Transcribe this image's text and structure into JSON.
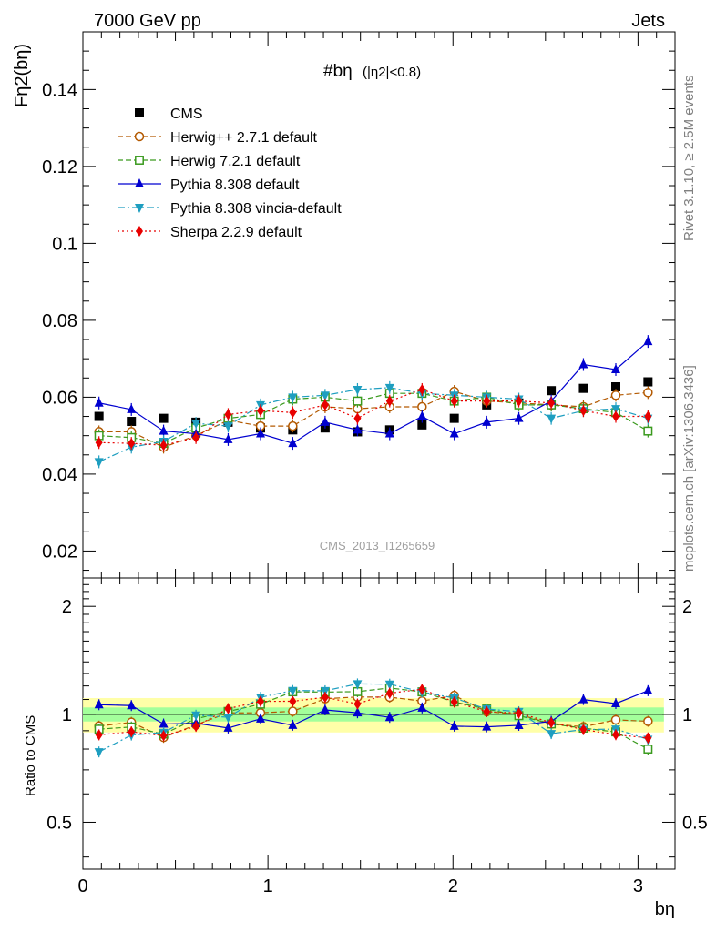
{
  "header": {
    "left": "7000 GeV pp",
    "right": "Jets"
  },
  "side_text": {
    "rivet": "Rivet 3.1.10, ≥ 2.5M events",
    "mcplots": "mcplots.cern.ch [arXiv:1306.3436]"
  },
  "watermark": "CMS_2013_I1265659",
  "plot_title": {
    "main": "#bη",
    "cut": "(|η2|<0.8)"
  },
  "axes": {
    "ylabel_main": "Fη2(bη)",
    "ylabel_ratio": "Ratio to CMS",
    "xlabel": "bη"
  },
  "chart_data": {
    "type": "scatter",
    "title": "#bη (|η2|<0.8)",
    "xlabel": "bη",
    "ylabel": "Fη2(bη)",
    "xlim": [
      0,
      3.2
    ],
    "ylim": [
      0.013,
      0.155
    ],
    "ratio_ylim": [
      0.37,
      2.4
    ],
    "ratio_ylabel": "Ratio to CMS",
    "legend_position": "top-left",
    "x": [
      0.087,
      0.262,
      0.436,
      0.611,
      0.785,
      0.96,
      1.134,
      1.309,
      1.484,
      1.658,
      1.833,
      2.007,
      2.182,
      2.356,
      2.531,
      2.705,
      2.88,
      3.054
    ],
    "main_ticks": [
      0.02,
      0.04,
      0.06,
      0.08,
      0.1,
      0.12,
      0.14
    ],
    "x_ticks": [
      0,
      1,
      2,
      3
    ],
    "ratio_ticks": [
      0.5,
      1,
      2
    ],
    "series": [
      {
        "name": "CMS",
        "color": "#000000",
        "marker": "square",
        "line": "none",
        "values": [
          0.055,
          0.0537,
          0.0545,
          0.0535,
          0.0535,
          0.052,
          0.0515,
          0.052,
          0.051,
          0.0515,
          0.0528,
          0.0545,
          0.058,
          0.0585,
          0.0617,
          0.0623,
          0.0627,
          0.064
        ]
      },
      {
        "name": "Herwig++ 2.7.1 default",
        "color": "#b35900",
        "marker": "circle-open",
        "line": "dashed",
        "values": [
          0.051,
          0.051,
          0.047,
          0.05,
          0.054,
          0.0525,
          0.0525,
          0.0575,
          0.057,
          0.0575,
          0.0575,
          0.0615,
          0.059,
          0.0585,
          0.058,
          0.0575,
          0.0605,
          0.0612
        ]
      },
      {
        "name": "Herwig 7.2.1 default",
        "color": "#3a9a1e",
        "marker": "square-open",
        "line": "dashed",
        "values": [
          0.05,
          0.0495,
          0.048,
          0.052,
          0.0545,
          0.0555,
          0.0595,
          0.06,
          0.059,
          0.061,
          0.061,
          0.059,
          0.06,
          0.058,
          0.058,
          0.057,
          0.056,
          0.0512
        ]
      },
      {
        "name": "Pythia 8.308 default",
        "color": "#0000d0",
        "marker": "triangle-up",
        "line": "solid",
        "values": [
          0.0585,
          0.0568,
          0.0512,
          0.0505,
          0.049,
          0.0505,
          0.048,
          0.0535,
          0.0515,
          0.0505,
          0.055,
          0.0505,
          0.0535,
          0.0545,
          0.059,
          0.0685,
          0.0672,
          0.0745
        ]
      },
      {
        "name": "Pythia 8.308 vincia-default",
        "color": "#1e9ec0",
        "marker": "triangle-down",
        "line": "dashdot",
        "values": [
          0.0432,
          0.047,
          0.0485,
          0.0532,
          0.0525,
          0.058,
          0.06,
          0.0605,
          0.062,
          0.0625,
          0.061,
          0.0605,
          0.06,
          0.0595,
          0.0545,
          0.0565,
          0.057,
          0.0545
        ]
      },
      {
        "name": "Sherpa 2.2.9 default",
        "color": "#e80000",
        "marker": "diamond",
        "line": "dotted",
        "values": [
          0.0482,
          0.048,
          0.0475,
          0.0495,
          0.0555,
          0.0565,
          0.056,
          0.058,
          0.0545,
          0.059,
          0.062,
          0.059,
          0.059,
          0.059,
          0.0585,
          0.0565,
          0.055,
          0.055
        ]
      }
    ]
  }
}
